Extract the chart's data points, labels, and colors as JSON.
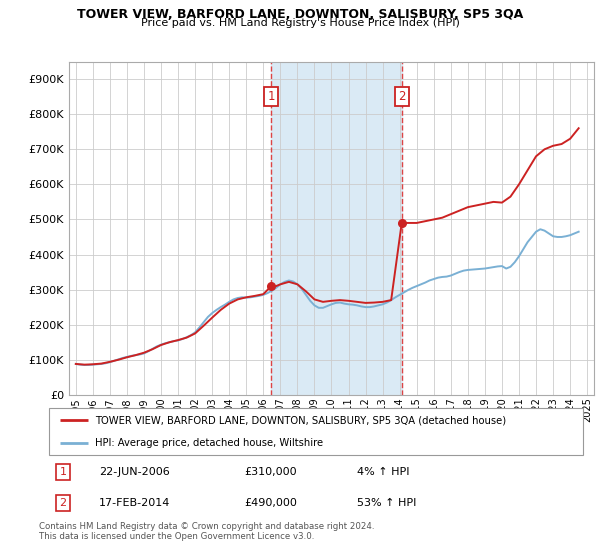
{
  "title": "TOWER VIEW, BARFORD LANE, DOWNTON, SALISBURY, SP5 3QA",
  "subtitle": "Price paid vs. HM Land Registry's House Price Index (HPI)",
  "ylabel_ticks": [
    "£0",
    "£100K",
    "£200K",
    "£300K",
    "£400K",
    "£500K",
    "£600K",
    "£700K",
    "£800K",
    "£900K"
  ],
  "ytick_values": [
    0,
    100000,
    200000,
    300000,
    400000,
    500000,
    600000,
    700000,
    800000,
    900000
  ],
  "ylim": [
    0,
    950000
  ],
  "xlim_start": 1994.6,
  "xlim_end": 2025.4,
  "sale1_date": 2006.47,
  "sale1_price": 310000,
  "sale1_label": "1",
  "sale2_date": 2014.12,
  "sale2_price": 490000,
  "sale2_label": "2",
  "shade_color": "#daeaf5",
  "vline_color": "#dd4444",
  "marker_box_color": "#cc2222",
  "line_color_red": "#cc2222",
  "line_color_blue": "#7ab0d4",
  "legend_entry1": "TOWER VIEW, BARFORD LANE, DOWNTON, SALISBURY, SP5 3QA (detached house)",
  "legend_entry2": "HPI: Average price, detached house, Wiltshire",
  "table_row1": [
    "1",
    "22-JUN-2006",
    "£310,000",
    "4% ↑ HPI"
  ],
  "table_row2": [
    "2",
    "17-FEB-2014",
    "£490,000",
    "53% ↑ HPI"
  ],
  "footnote": "Contains HM Land Registry data © Crown copyright and database right 2024.\nThis data is licensed under the Open Government Licence v3.0.",
  "background_color": "#ffffff",
  "grid_color": "#cccccc",
  "hpi_data": {
    "years": [
      1995.0,
      1995.25,
      1995.5,
      1995.75,
      1996.0,
      1996.25,
      1996.5,
      1996.75,
      1997.0,
      1997.25,
      1997.5,
      1997.75,
      1998.0,
      1998.25,
      1998.5,
      1998.75,
      1999.0,
      1999.25,
      1999.5,
      1999.75,
      2000.0,
      2000.25,
      2000.5,
      2000.75,
      2001.0,
      2001.25,
      2001.5,
      2001.75,
      2002.0,
      2002.25,
      2002.5,
      2002.75,
      2003.0,
      2003.25,
      2003.5,
      2003.75,
      2004.0,
      2004.25,
      2004.5,
      2004.75,
      2005.0,
      2005.25,
      2005.5,
      2005.75,
      2006.0,
      2006.25,
      2006.5,
      2006.75,
      2007.0,
      2007.25,
      2007.5,
      2007.75,
      2008.0,
      2008.25,
      2008.5,
      2008.75,
      2009.0,
      2009.25,
      2009.5,
      2009.75,
      2010.0,
      2010.25,
      2010.5,
      2010.75,
      2011.0,
      2011.25,
      2011.5,
      2011.75,
      2012.0,
      2012.25,
      2012.5,
      2012.75,
      2013.0,
      2013.25,
      2013.5,
      2013.75,
      2014.0,
      2014.25,
      2014.5,
      2014.75,
      2015.0,
      2015.25,
      2015.5,
      2015.75,
      2016.0,
      2016.25,
      2016.5,
      2016.75,
      2017.0,
      2017.25,
      2017.5,
      2017.75,
      2018.0,
      2018.25,
      2018.5,
      2018.75,
      2019.0,
      2019.25,
      2019.5,
      2019.75,
      2020.0,
      2020.25,
      2020.5,
      2020.75,
      2021.0,
      2021.25,
      2021.5,
      2021.75,
      2022.0,
      2022.25,
      2022.5,
      2022.75,
      2023.0,
      2023.25,
      2023.5,
      2023.75,
      2024.0,
      2024.25,
      2024.5
    ],
    "values": [
      88000,
      86000,
      85000,
      85000,
      86000,
      87000,
      88000,
      90000,
      93000,
      97000,
      101000,
      105000,
      108000,
      111000,
      113000,
      115000,
      118000,
      124000,
      131000,
      138000,
      143000,
      147000,
      150000,
      153000,
      155000,
      159000,
      164000,
      170000,
      178000,
      192000,
      207000,
      222000,
      233000,
      242000,
      250000,
      257000,
      265000,
      272000,
      276000,
      278000,
      277000,
      278000,
      280000,
      282000,
      285000,
      290000,
      297000,
      305000,
      315000,
      322000,
      326000,
      323000,
      315000,
      302000,
      285000,
      268000,
      255000,
      248000,
      248000,
      253000,
      258000,
      262000,
      263000,
      260000,
      258000,
      257000,
      255000,
      252000,
      250000,
      250000,
      252000,
      255000,
      258000,
      263000,
      270000,
      278000,
      285000,
      292000,
      299000,
      305000,
      310000,
      315000,
      320000,
      326000,
      330000,
      334000,
      336000,
      337000,
      340000,
      345000,
      350000,
      354000,
      356000,
      357000,
      358000,
      359000,
      360000,
      362000,
      364000,
      366000,
      367000,
      360000,
      365000,
      378000,
      395000,
      415000,
      435000,
      450000,
      465000,
      472000,
      468000,
      460000,
      452000,
      450000,
      450000,
      452000,
      455000,
      460000,
      465000
    ]
  },
  "property_data": {
    "years": [
      1995.0,
      1995.5,
      1996.0,
      1996.5,
      1997.0,
      1997.5,
      1998.0,
      1998.5,
      1999.0,
      1999.5,
      2000.0,
      2000.5,
      2001.0,
      2001.5,
      2002.0,
      2002.5,
      2003.0,
      2003.5,
      2004.0,
      2004.5,
      2005.0,
      2005.5,
      2006.0,
      2006.47,
      2006.75,
      2007.0,
      2007.5,
      2008.0,
      2008.5,
      2009.0,
      2009.5,
      2010.0,
      2010.5,
      2011.0,
      2011.5,
      2012.0,
      2012.5,
      2013.0,
      2013.5,
      2014.12,
      2014.5,
      2015.0,
      2015.5,
      2016.0,
      2016.5,
      2017.0,
      2017.5,
      2018.0,
      2018.5,
      2019.0,
      2019.5,
      2020.0,
      2020.5,
      2021.0,
      2021.5,
      2022.0,
      2022.5,
      2023.0,
      2023.5,
      2024.0,
      2024.5
    ],
    "values": [
      88000,
      86000,
      87000,
      89000,
      94000,
      100000,
      107000,
      113000,
      120000,
      130000,
      142000,
      150000,
      156000,
      163000,
      175000,
      197000,
      220000,
      242000,
      260000,
      272000,
      278000,
      282000,
      287000,
      310000,
      310000,
      315000,
      322000,
      315000,
      295000,
      272000,
      265000,
      268000,
      270000,
      268000,
      265000,
      262000,
      263000,
      265000,
      270000,
      490000,
      490000,
      490000,
      495000,
      500000,
      505000,
      515000,
      525000,
      535000,
      540000,
      545000,
      550000,
      548000,
      565000,
      600000,
      640000,
      680000,
      700000,
      710000,
      715000,
      730000,
      760000
    ]
  }
}
